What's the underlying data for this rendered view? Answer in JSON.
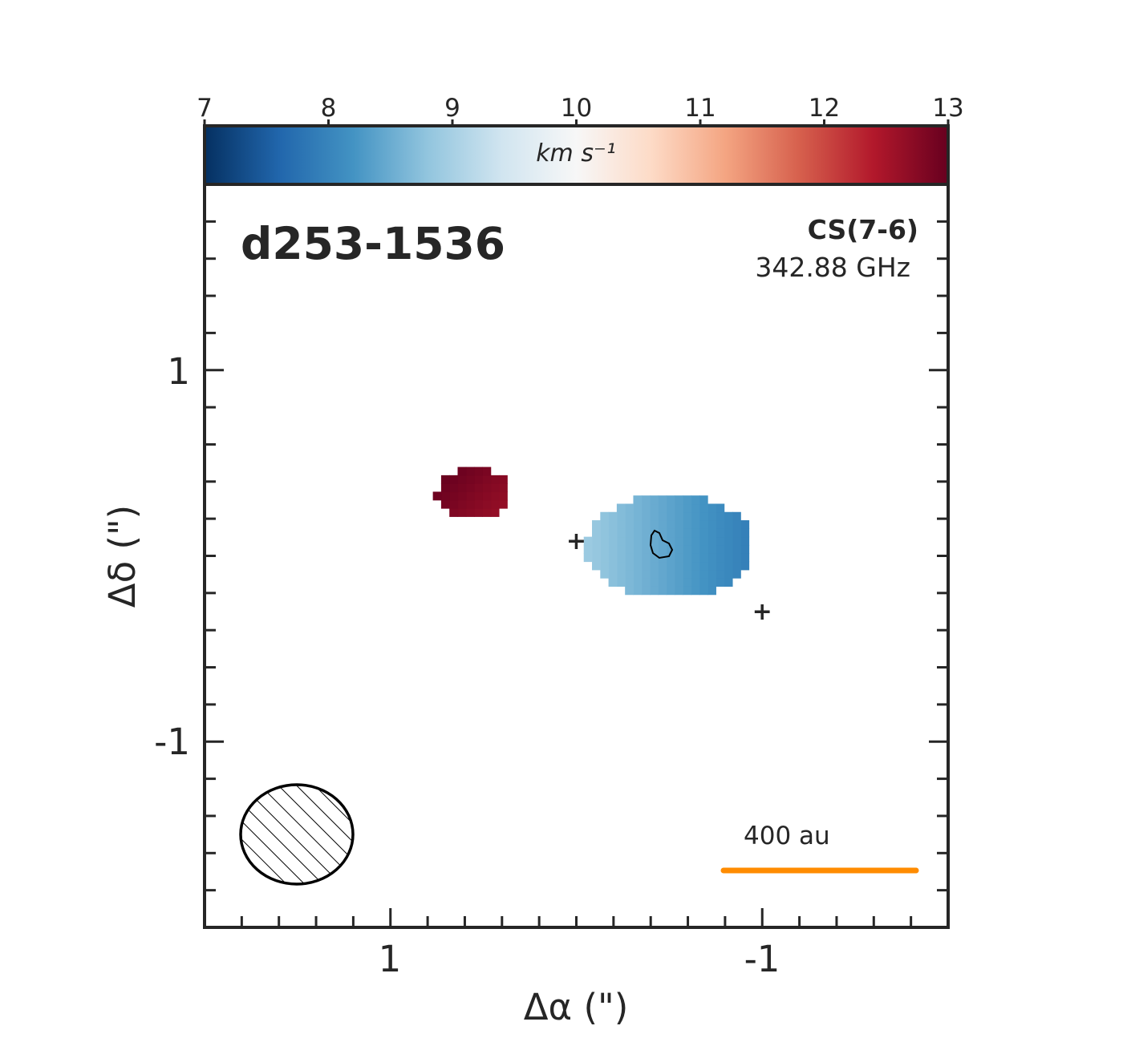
{
  "chart_data": {
    "type": "heatmap",
    "title": "d253-1536",
    "line_name": "CS(7-6)",
    "frequency": "342.88 GHz",
    "xlabel": "Δα (\")",
    "ylabel": "Δδ (\")",
    "x_ticks": [
      "1",
      "-1"
    ],
    "y_ticks": [
      "1",
      "-1"
    ],
    "xlim": [
      2,
      -2
    ],
    "ylim": [
      -2,
      2
    ],
    "colorbar": {
      "label": "km s⁻¹",
      "range": [
        7,
        13
      ],
      "ticks": [
        "7",
        "8",
        "9",
        "10",
        "11",
        "12",
        "13"
      ],
      "colormap": "RdBu_r",
      "position": "top"
    },
    "scale_bar": {
      "label": "400 au",
      "color": "#ff8c00"
    },
    "beam": {
      "hatched": true,
      "position": "bottom-left"
    },
    "markers": [
      {
        "x": 0.0,
        "y": 0.08,
        "symbol": "+",
        "color": "#ff8c00"
      },
      {
        "x": -1.0,
        "y": -0.3,
        "symbol": "+",
        "color": "#ff8c00"
      }
    ],
    "blobs": [
      {
        "name": "red-blob",
        "velocity": 12.8,
        "x_center": 0.55,
        "y_center": 0.33
      },
      {
        "name": "blue-blob",
        "velocity": 8.4,
        "x_center": -0.5,
        "y_center": 0.05
      }
    ]
  },
  "colors": {
    "axis": "#262626",
    "accent": "#ff8c00"
  }
}
